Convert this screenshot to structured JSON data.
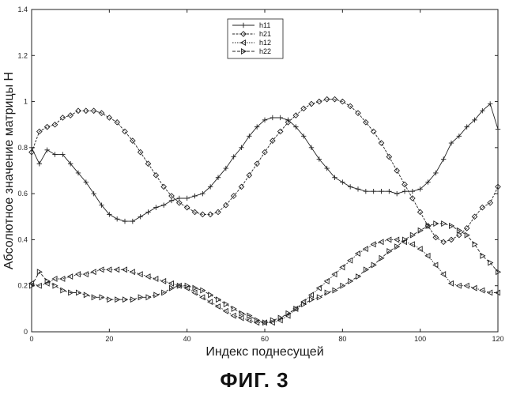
{
  "figure_caption": "ФИГ. 3",
  "chart_data": {
    "type": "line",
    "title": "",
    "xlabel": "Индекс поднесущей",
    "ylabel": "Абсолютное значение матрицы H",
    "xlim": [
      0,
      120
    ],
    "ylim": [
      0,
      1.4
    ],
    "xticks": [
      0,
      20,
      40,
      60,
      80,
      100,
      120
    ],
    "yticks": [
      0,
      0.2,
      0.4,
      0.6,
      0.8,
      1,
      1.2,
      1.4
    ],
    "xtick_labels": [
      "0",
      "20",
      "40",
      "60",
      "80",
      "100",
      "120"
    ],
    "ytick_labels": [
      "0",
      "0.2",
      "0.4",
      "0.6",
      "0.8",
      "1",
      "1.2",
      "1.4"
    ],
    "grid": false,
    "legend_position": "top-center",
    "series": [
      {
        "name": "h11",
        "marker": "plus",
        "x": [
          0,
          2,
          4,
          6,
          8,
          10,
          12,
          14,
          16,
          18,
          20,
          22,
          24,
          26,
          28,
          30,
          32,
          34,
          36,
          38,
          40,
          42,
          44,
          46,
          48,
          50,
          52,
          54,
          56,
          58,
          60,
          62,
          64,
          66,
          68,
          70,
          72,
          74,
          76,
          78,
          80,
          82,
          84,
          86,
          88,
          90,
          92,
          94,
          96,
          98,
          100,
          102,
          104,
          106,
          108,
          110,
          112,
          114,
          116,
          118,
          120
        ],
        "y": [
          0.8,
          0.73,
          0.79,
          0.77,
          0.77,
          0.73,
          0.69,
          0.65,
          0.6,
          0.55,
          0.51,
          0.49,
          0.48,
          0.48,
          0.5,
          0.52,
          0.54,
          0.55,
          0.57,
          0.58,
          0.58,
          0.59,
          0.6,
          0.63,
          0.67,
          0.71,
          0.76,
          0.8,
          0.85,
          0.89,
          0.92,
          0.93,
          0.93,
          0.92,
          0.89,
          0.85,
          0.8,
          0.75,
          0.71,
          0.67,
          0.65,
          0.63,
          0.62,
          0.61,
          0.61,
          0.61,
          0.61,
          0.6,
          0.61,
          0.61,
          0.62,
          0.65,
          0.69,
          0.75,
          0.82,
          0.85,
          0.89,
          0.92,
          0.96,
          0.99,
          0.88
        ]
      },
      {
        "name": "h21",
        "marker": "diamond",
        "x": [
          0,
          2,
          4,
          6,
          8,
          10,
          12,
          14,
          16,
          18,
          20,
          22,
          24,
          26,
          28,
          30,
          32,
          34,
          36,
          38,
          40,
          42,
          44,
          46,
          48,
          50,
          52,
          54,
          56,
          58,
          60,
          62,
          64,
          66,
          68,
          70,
          72,
          74,
          76,
          78,
          80,
          82,
          84,
          86,
          88,
          90,
          92,
          94,
          96,
          98,
          100,
          102,
          104,
          106,
          108,
          110,
          112,
          114,
          116,
          118,
          120
        ],
        "y": [
          0.78,
          0.87,
          0.89,
          0.9,
          0.93,
          0.94,
          0.96,
          0.96,
          0.96,
          0.95,
          0.93,
          0.91,
          0.87,
          0.83,
          0.78,
          0.73,
          0.68,
          0.63,
          0.59,
          0.56,
          0.54,
          0.52,
          0.51,
          0.51,
          0.52,
          0.55,
          0.59,
          0.63,
          0.68,
          0.73,
          0.78,
          0.83,
          0.87,
          0.91,
          0.94,
          0.97,
          0.99,
          1.0,
          1.01,
          1.01,
          1.0,
          0.98,
          0.95,
          0.91,
          0.87,
          0.82,
          0.76,
          0.7,
          0.64,
          0.58,
          0.52,
          0.46,
          0.41,
          0.39,
          0.4,
          0.42,
          0.45,
          0.5,
          0.54,
          0.56,
          0.63
        ]
      },
      {
        "name": "h12",
        "marker": "triangle-left",
        "x": [
          0,
          2,
          4,
          6,
          8,
          10,
          12,
          14,
          16,
          18,
          20,
          22,
          24,
          26,
          28,
          30,
          32,
          34,
          36,
          38,
          40,
          42,
          44,
          46,
          48,
          50,
          52,
          54,
          56,
          58,
          60,
          62,
          64,
          66,
          68,
          70,
          72,
          74,
          76,
          78,
          80,
          82,
          84,
          86,
          88,
          90,
          92,
          94,
          96,
          98,
          100,
          102,
          104,
          106,
          108,
          110,
          112,
          114,
          116,
          118,
          120
        ],
        "y": [
          0.21,
          0.2,
          0.21,
          0.23,
          0.23,
          0.24,
          0.25,
          0.25,
          0.26,
          0.27,
          0.27,
          0.27,
          0.27,
          0.26,
          0.25,
          0.24,
          0.23,
          0.22,
          0.21,
          0.2,
          0.19,
          0.17,
          0.15,
          0.13,
          0.11,
          0.09,
          0.07,
          0.06,
          0.05,
          0.04,
          0.04,
          0.04,
          0.05,
          0.07,
          0.1,
          0.13,
          0.16,
          0.19,
          0.22,
          0.25,
          0.28,
          0.31,
          0.34,
          0.36,
          0.38,
          0.39,
          0.4,
          0.4,
          0.39,
          0.38,
          0.36,
          0.33,
          0.29,
          0.25,
          0.21,
          0.2,
          0.2,
          0.19,
          0.18,
          0.17,
          0.17
        ]
      },
      {
        "name": "h22",
        "marker": "triangle-right",
        "x": [
          0,
          2,
          4,
          6,
          8,
          10,
          12,
          14,
          16,
          18,
          20,
          22,
          24,
          26,
          28,
          30,
          32,
          34,
          36,
          38,
          40,
          42,
          44,
          46,
          48,
          50,
          52,
          54,
          56,
          58,
          60,
          62,
          64,
          66,
          68,
          70,
          72,
          74,
          76,
          78,
          80,
          82,
          84,
          86,
          88,
          90,
          92,
          94,
          96,
          98,
          100,
          102,
          104,
          106,
          108,
          110,
          112,
          114,
          116,
          118,
          120
        ],
        "y": [
          0.2,
          0.26,
          0.22,
          0.2,
          0.18,
          0.17,
          0.17,
          0.16,
          0.15,
          0.15,
          0.14,
          0.14,
          0.14,
          0.14,
          0.15,
          0.15,
          0.16,
          0.17,
          0.19,
          0.2,
          0.2,
          0.19,
          0.18,
          0.16,
          0.14,
          0.12,
          0.1,
          0.08,
          0.07,
          0.05,
          0.04,
          0.05,
          0.06,
          0.08,
          0.1,
          0.12,
          0.14,
          0.15,
          0.17,
          0.18,
          0.2,
          0.22,
          0.24,
          0.27,
          0.29,
          0.32,
          0.35,
          0.37,
          0.4,
          0.42,
          0.44,
          0.46,
          0.47,
          0.47,
          0.46,
          0.44,
          0.42,
          0.38,
          0.33,
          0.3,
          0.26
        ]
      }
    ]
  }
}
